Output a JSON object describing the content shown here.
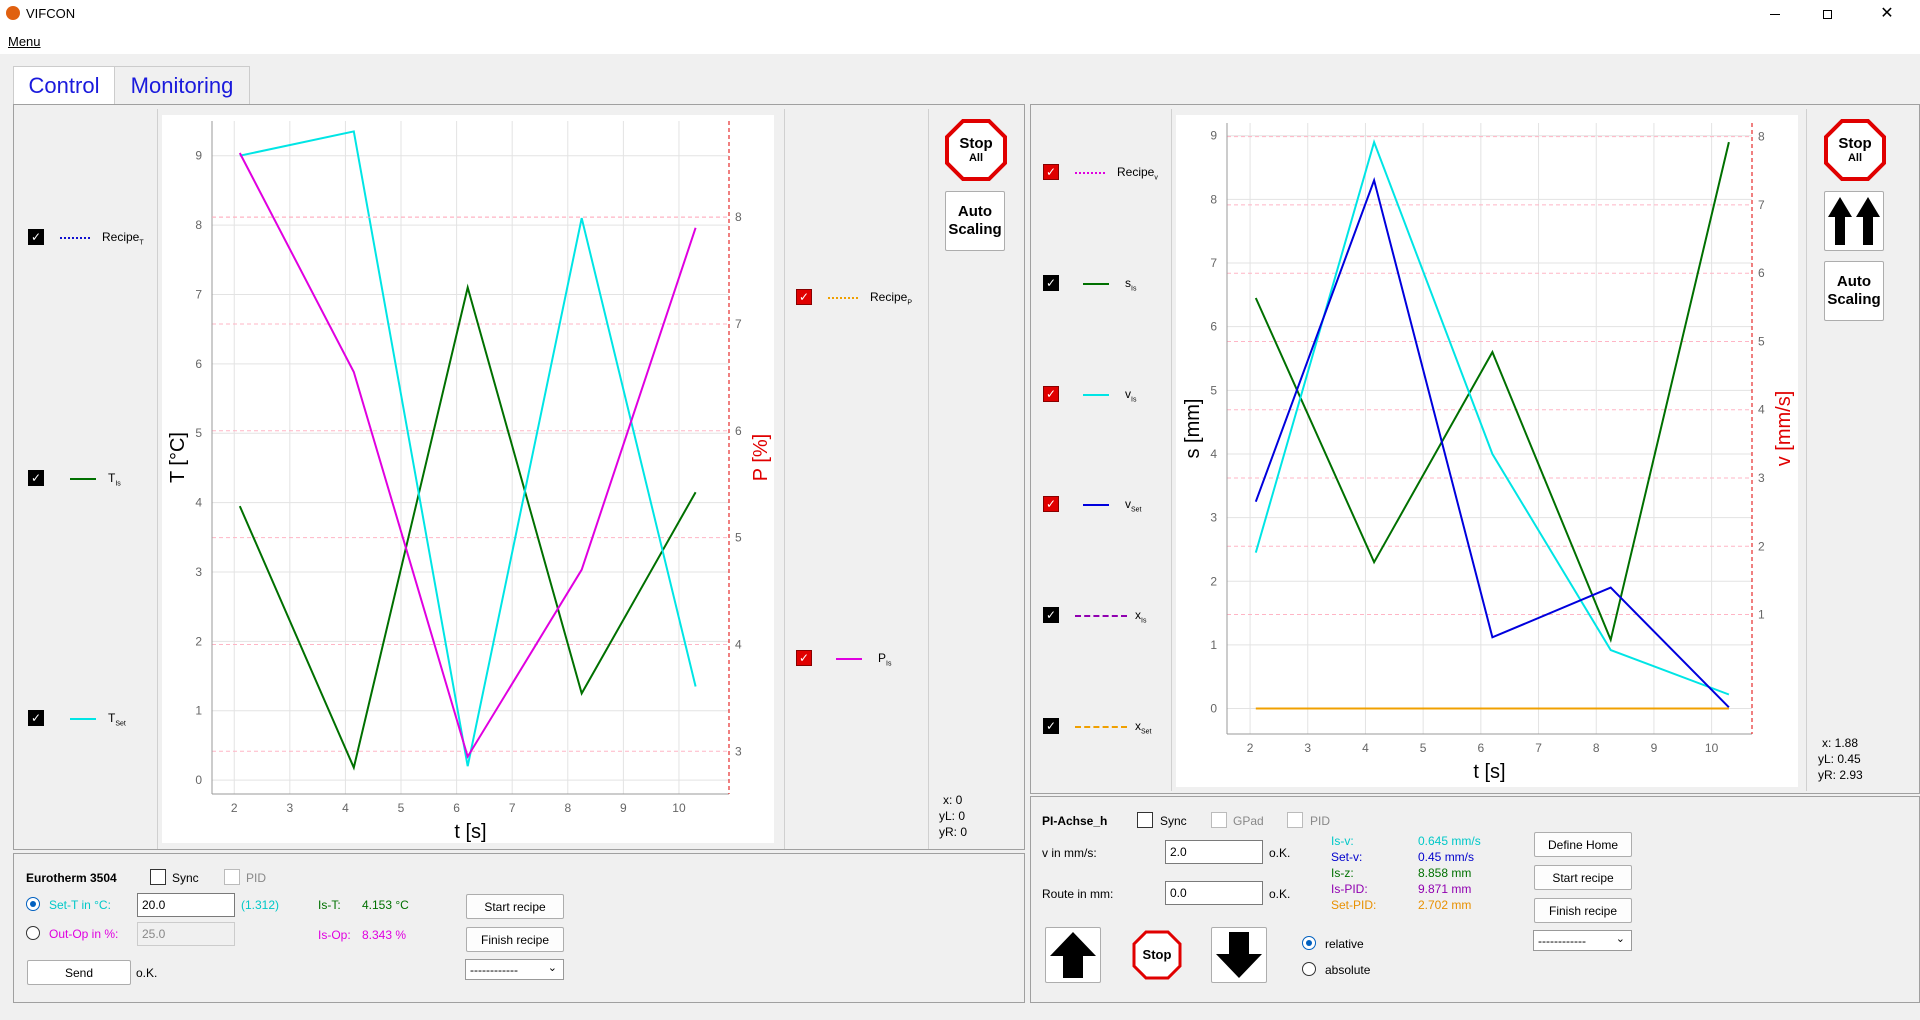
{
  "window": {
    "title": "VIFCON",
    "minimize_icon": "minimize-icon",
    "restore_icon": "restore-icon",
    "close_icon": "close-icon"
  },
  "menu": {
    "label": "Menu"
  },
  "tabs": [
    {
      "label": "Control"
    },
    {
      "label": "Monitoring"
    }
  ],
  "left": {
    "legend_left": [
      {
        "label": "Recipe",
        "sub": "T",
        "checked": true
      },
      {
        "label": "T",
        "sub": "Is",
        "checked": true
      },
      {
        "label": "T",
        "sub": "Set",
        "checked": true
      }
    ],
    "legend_right": [
      {
        "label": "Recipe",
        "sub": "P",
        "checked": true
      },
      {
        "label": "P",
        "sub": "Is",
        "checked": true
      }
    ],
    "stop_all": {
      "line1": "Stop",
      "line2": "All"
    },
    "auto_scaling": {
      "line1": "Auto",
      "line2": "Scaling"
    },
    "coords": {
      "x": "x: 0",
      "yL": "yL: 0",
      "yR": "yR: 0"
    }
  },
  "right": {
    "legend": [
      {
        "label": "Recipe",
        "sub": "v",
        "checked": true
      },
      {
        "label": "s",
        "sub": "Is",
        "checked": true
      },
      {
        "label": "v",
        "sub": "Is",
        "checked": true
      },
      {
        "label": "v",
        "sub": "Set",
        "checked": true
      },
      {
        "label": "x",
        "sub": "Is",
        "checked": true
      },
      {
        "label": "x",
        "sub": "Set",
        "checked": true
      }
    ],
    "stop_all": {
      "line1": "Stop",
      "line2": "All"
    },
    "auto_scaling": {
      "line1": "Auto",
      "line2": "Scaling"
    },
    "coords": {
      "x": "x: 1.88",
      "yL": "yL: 0.45",
      "yR": "yR: 2.93"
    }
  },
  "eurotherm": {
    "title": "Eurotherm 3504",
    "sync": "Sync",
    "pid": "PID",
    "set_t_label": "Set-T in °C:",
    "set_t_value": "20.0",
    "set_t_hint": "(1.312)",
    "out_op_label": "Out-Op in %:",
    "out_op_value": "25.0",
    "is_t_label": "Is-T:",
    "is_t_value": "4.153 °C",
    "is_op_label": "Is-Op:",
    "is_op_value": "8.343 %",
    "send": "Send",
    "ok": "o.K.",
    "start_recipe": "Start recipe",
    "finish_recipe": "Finish recipe",
    "recipe_select": "------------"
  },
  "pi_axis": {
    "title": "PI-Achse_h",
    "sync": "Sync",
    "gpad": "GPad",
    "pid": "PID",
    "v_label": "v in mm/s:",
    "v_value": "2.0",
    "v_ok": "o.K.",
    "route_label": "Route in mm:",
    "route_value": "0.0",
    "route_ok": "o.K.",
    "readouts": [
      {
        "label": "Is-v:",
        "value": "0.645 mm/s",
        "color": "#00c8c8"
      },
      {
        "label": "Set-v:",
        "value": "0.45 mm/s",
        "color": "#0000cc"
      },
      {
        "label": "Is-z:",
        "value": "8.858 mm",
        "color": "#007000"
      },
      {
        "label": "Is-PID:",
        "value": "9.871 mm",
        "color": "#9000b0"
      },
      {
        "label": "Set-PID:",
        "value": "2.702 mm",
        "color": "#e89000"
      }
    ],
    "define_home": "Define Home",
    "start_recipe": "Start recipe",
    "finish_recipe": "Finish recipe",
    "recipe_select": "------------",
    "stop": "Stop",
    "relative": "relative",
    "absolute": "absolute"
  },
  "chart_data": [
    {
      "type": "line",
      "xlabel": "t [s]",
      "ylabel": "T [°C]",
      "ylabel_right": "P [%]",
      "xlim": [
        1.6,
        10.9
      ],
      "ylim": [
        -0.2,
        9.5
      ],
      "ylim_right": [
        2.6,
        8.9
      ],
      "x_ticks": [
        2,
        3,
        4,
        5,
        6,
        7,
        8,
        9,
        10
      ],
      "y_ticks": [
        0,
        1,
        2,
        3,
        4,
        5,
        6,
        7,
        8,
        9
      ],
      "y_ticks_right": [
        3,
        4,
        5,
        6,
        7,
        8
      ],
      "grid": true,
      "series": [
        {
          "name": "T_Is",
          "axis": "left",
          "color": "#007000",
          "x": [
            2.1,
            4.15,
            6.2,
            8.25,
            10.3
          ],
          "y": [
            3.95,
            0.18,
            7.1,
            1.25,
            4.15
          ]
        },
        {
          "name": "T_Set",
          "axis": "left",
          "color": "#00e5e5",
          "x": [
            2.1,
            4.15,
            6.2,
            8.25,
            10.3
          ],
          "y": [
            9.0,
            9.35,
            0.2,
            8.1,
            1.35
          ]
        },
        {
          "name": "P_Is",
          "axis": "right",
          "color": "#e000e0",
          "x": [
            2.1,
            4.15,
            6.2,
            8.25,
            10.3
          ],
          "y": [
            8.6,
            6.55,
            2.95,
            4.7,
            7.9
          ]
        },
        {
          "name": "Recipe_P",
          "axis": "right",
          "color": "#ffb0c0",
          "dashed": true,
          "x": [
            1.6,
            10.9
          ],
          "y": [
            8.0,
            8.0
          ]
        }
      ]
    },
    {
      "type": "line",
      "xlabel": "t [s]",
      "ylabel": "s [mm]",
      "ylabel_right": "v [mm/s]",
      "xlim": [
        1.6,
        10.7
      ],
      "ylim": [
        -0.4,
        9.2
      ],
      "ylim_right": [
        -0.75,
        8.2
      ],
      "x_ticks": [
        2,
        3,
        4,
        5,
        6,
        7,
        8,
        9,
        10
      ],
      "y_ticks": [
        0,
        1,
        2,
        3,
        4,
        5,
        6,
        7,
        8,
        9
      ],
      "y_ticks_right": [
        1,
        2,
        3,
        4,
        5,
        6,
        7,
        8
      ],
      "grid": true,
      "series": [
        {
          "name": "s_Is",
          "axis": "left",
          "color": "#007000",
          "x": [
            2.1,
            4.15,
            6.2,
            8.25,
            10.3
          ],
          "y": [
            6.45,
            2.3,
            5.6,
            1.08,
            8.9
          ]
        },
        {
          "name": "v_Is",
          "axis": "left",
          "color": "#00e5e5",
          "x": [
            2.1,
            4.15,
            6.2,
            8.25,
            10.3
          ],
          "y": [
            2.45,
            8.9,
            4.0,
            0.92,
            0.22
          ]
        },
        {
          "name": "v_Set",
          "axis": "left",
          "color": "#0000dd",
          "x": [
            2.1,
            4.15,
            6.2,
            8.25,
            10.3
          ],
          "y": [
            3.25,
            8.3,
            1.12,
            1.9,
            0.02
          ]
        },
        {
          "name": "x_Set",
          "axis": "left",
          "color": "#f0a000",
          "x": [
            2.1,
            10.3
          ],
          "y": [
            0.0,
            0.0
          ]
        }
      ]
    }
  ]
}
